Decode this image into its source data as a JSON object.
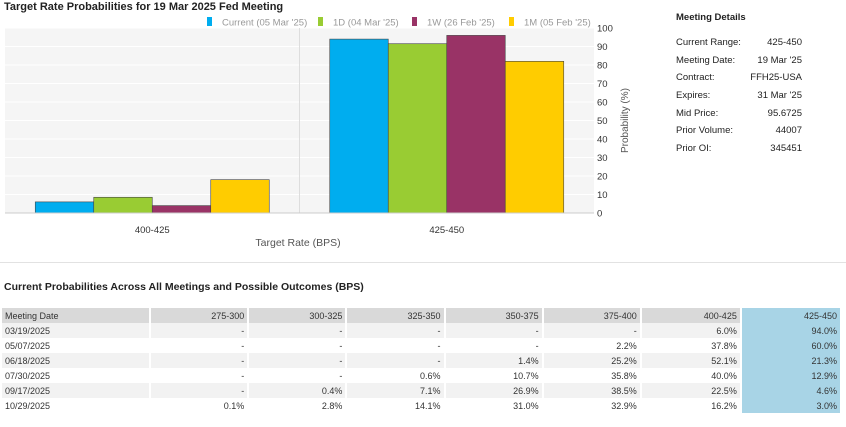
{
  "chart_data": {
    "type": "bar",
    "title": "Target Rate Probabilities for 19 Mar 2025 Fed Meeting",
    "xlabel": "Target Rate (BPS)",
    "ylabel": "Probability (%)",
    "ylim": [
      0,
      100
    ],
    "yticks": [
      0,
      10,
      20,
      30,
      40,
      50,
      60,
      70,
      80,
      90,
      100
    ],
    "legend_position": "top",
    "categories": [
      "400-425",
      "425-450"
    ],
    "series": [
      {
        "name": "Current (05 Mar '25)",
        "color": "#00adef",
        "values": [
          6.0,
          94.0
        ]
      },
      {
        "name": "1D (04 Mar '25)",
        "color": "#99cc33",
        "values": [
          8.5,
          91.5
        ]
      },
      {
        "name": "1W (26 Feb '25)",
        "color": "#993366",
        "values": [
          4.0,
          96.0
        ]
      },
      {
        "name": "1M (05 Feb '25)",
        "color": "#ffcc00",
        "values": [
          18.0,
          82.0
        ]
      }
    ]
  },
  "meeting_details": {
    "title": "Meeting Details",
    "rows": [
      {
        "label": "Current Range:",
        "value": "425-450"
      },
      {
        "label": "Meeting Date:",
        "value": "19 Mar '25"
      },
      {
        "label": "Contract:",
        "value": "FFH25-USA"
      },
      {
        "label": "Expires:",
        "value": "31 Mar '25"
      },
      {
        "label": "Mid Price:",
        "value": "95.6725"
      },
      {
        "label": "Prior Volume:",
        "value": "44007"
      },
      {
        "label": "Prior OI:",
        "value": "345451"
      }
    ]
  },
  "probability_table": {
    "title": "Current Probabilities Across All Meetings and Possible Outcomes (BPS)",
    "headers": [
      "Meeting Date",
      "275-300",
      "300-325",
      "325-350",
      "350-375",
      "375-400",
      "400-425",
      "425-450"
    ],
    "rows": [
      [
        "03/19/2025",
        "-",
        "-",
        "-",
        "-",
        "-",
        "6.0%",
        "94.0%"
      ],
      [
        "05/07/2025",
        "-",
        "-",
        "-",
        "-",
        "2.2%",
        "37.8%",
        "60.0%"
      ],
      [
        "06/18/2025",
        "-",
        "-",
        "-",
        "1.4%",
        "25.2%",
        "52.1%",
        "21.3%"
      ],
      [
        "07/30/2025",
        "-",
        "-",
        "0.6%",
        "10.7%",
        "35.8%",
        "40.0%",
        "12.9%"
      ],
      [
        "09/17/2025",
        "-",
        "0.4%",
        "7.1%",
        "26.9%",
        "38.5%",
        "22.5%",
        "4.6%"
      ],
      [
        "10/29/2025",
        "0.1%",
        "2.8%",
        "14.1%",
        "31.0%",
        "32.9%",
        "16.2%",
        "3.0%"
      ]
    ],
    "highlight_color": "#a8d4e6"
  }
}
